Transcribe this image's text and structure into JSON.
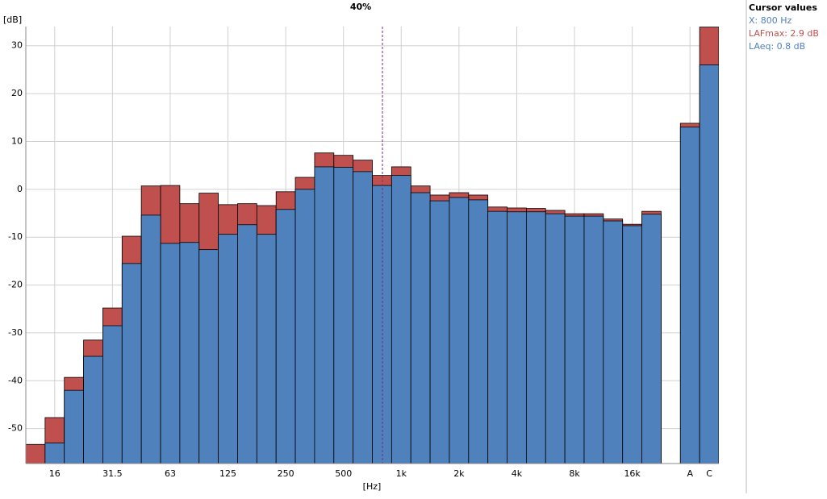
{
  "chart_data": {
    "type": "bar",
    "title": "40%",
    "y_label": "[dB]",
    "x_label": "[Hz]",
    "categories": [
      null,
      "16",
      null,
      null,
      "31.5",
      null,
      null,
      "63",
      null,
      null,
      "125",
      null,
      null,
      "250",
      null,
      null,
      "500",
      null,
      null,
      "1k",
      null,
      null,
      "2k",
      null,
      null,
      "4k",
      null,
      null,
      "8k",
      null,
      null,
      "16k",
      null,
      null,
      "A",
      "C"
    ],
    "series": [
      {
        "name": "LAFmax",
        "color": "#c0504d",
        "values": [
          -53.3,
          -47.7,
          -39.3,
          -31.5,
          -24.8,
          -9.8,
          0.7,
          0.8,
          -3.0,
          -0.8,
          -3.2,
          -3.0,
          -3.4,
          -0.5,
          2.5,
          7.6,
          7.1,
          6.1,
          2.9,
          4.7,
          0.7,
          -1.2,
          -0.7,
          -1.2,
          -3.7,
          -3.9,
          -4.0,
          -4.4,
          -5.1,
          -5.1,
          -6.2,
          -7.3,
          -4.6,
          null,
          13.8,
          33.9
        ]
      },
      {
        "name": "LAeq",
        "color": "#4f81bd",
        "values": [
          -58,
          -53.0,
          -42.0,
          -34.9,
          -28.5,
          -15.5,
          -5.4,
          -11.3,
          -11.1,
          -12.6,
          -9.4,
          -7.4,
          -9.4,
          -4.2,
          0.0,
          4.7,
          4.6,
          3.7,
          0.8,
          2.9,
          -0.7,
          -2.4,
          -1.7,
          -2.2,
          -4.6,
          -4.7,
          -4.7,
          -5.1,
          -5.6,
          -5.6,
          -6.6,
          -7.6,
          -5.2,
          null,
          13.0,
          26.0
        ]
      }
    ],
    "ylim": [
      -57.3,
      34
    ],
    "yticks": [
      -50,
      -40,
      -30,
      -20,
      -10,
      0,
      10,
      20,
      30
    ],
    "grid": true,
    "cursor": {
      "title": "Cursor values",
      "x_text": "X: 800 Hz",
      "value_texts": [
        ": 2.9 dB",
        ": 0.8 dB"
      ]
    }
  }
}
